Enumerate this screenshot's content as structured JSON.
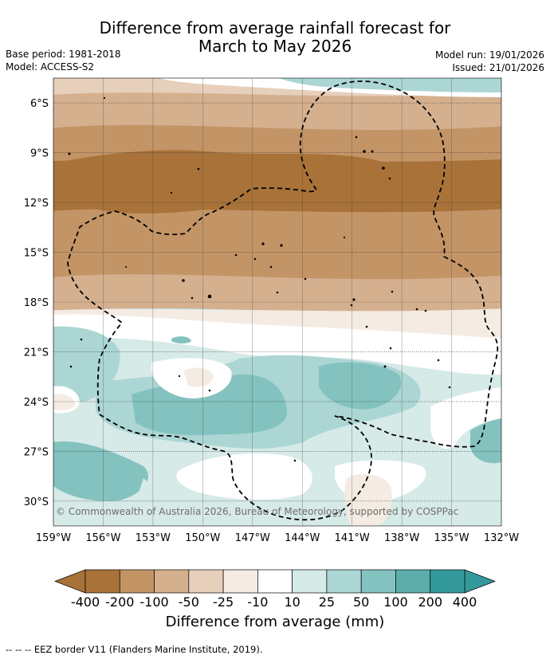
{
  "title_line1": "Difference from average rainfall forecast for",
  "title_line2": "March to May 2026",
  "meta_left": {
    "base_period": "Base period: 1981-2018",
    "model": "Model: ACCESS-S2"
  },
  "meta_right": {
    "model_run": "Model run: 19/01/2026",
    "issued": "Issued: 21/01/2026"
  },
  "copyright": "© Commonwealth of Australia 2026, Bureau of Meteorology, supported by COSPPac",
  "footer": "--  --  -- EEZ border V11 (Flanders Marine Institute, 2019).",
  "chart_data": {
    "type": "heatmap",
    "title": "Difference from average rainfall forecast for March to May 2026",
    "lon_range": [
      -159,
      -132
    ],
    "lat_range": [
      -31.5,
      -4.5
    ],
    "x_ticks": [
      "159°W",
      "156°W",
      "153°W",
      "150°W",
      "147°W",
      "144°W",
      "141°W",
      "138°W",
      "135°W",
      "132°W"
    ],
    "y_ticks": [
      "6°S",
      "9°S",
      "12°S",
      "15°S",
      "18°S",
      "21°S",
      "24°S",
      "27°S",
      "30°S"
    ],
    "x_tick_values": [
      -159,
      -156,
      -153,
      -150,
      -147,
      -144,
      -141,
      -138,
      -135,
      -132
    ],
    "y_tick_values": [
      -6,
      -9,
      -12,
      -15,
      -18,
      -21,
      -24,
      -27,
      -30
    ],
    "colorbar_label": "Difference from average (mm)",
    "colorbar_ticks": [
      "-400",
      "-200",
      "-100",
      "-50",
      "-25",
      "-10",
      "10",
      "25",
      "50",
      "100",
      "200",
      "400"
    ],
    "colorbar_colors": [
      "#a87239",
      "#c39466",
      "#d5b08f",
      "#e6d0bc",
      "#f4ebe3",
      "#ffffff",
      "#d6eae8",
      "#abd6d4",
      "#83c2bf",
      "#5daeab",
      "#34999a"
    ],
    "regions": [
      {
        "lat_from": -4.5,
        "lat_to": -5.5,
        "value": -25
      },
      {
        "lat_from": -5.5,
        "lat_to": -7.5,
        "value": -50
      },
      {
        "lat_from": -7.5,
        "lat_to": -9.5,
        "value": -100
      },
      {
        "lat_from": -9.5,
        "lat_to": -12.5,
        "value": -200
      },
      {
        "lat_from": -12.5,
        "lat_to": -16.5,
        "value": -100
      },
      {
        "lat_from": -16.5,
        "lat_to": -18.5,
        "value": -50
      },
      {
        "lat_from": -18.5,
        "lat_to": -20.5,
        "value": -10
      },
      {
        "lat_from": -20.5,
        "lat_to": -31.5,
        "value": 25
      }
    ],
    "overlays": [
      "EEZ border (dashed)"
    ]
  }
}
